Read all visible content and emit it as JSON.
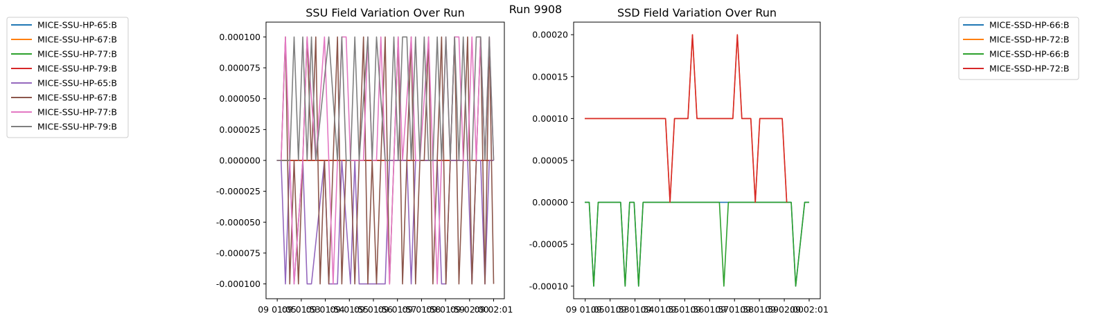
{
  "suptitle": "Run 9908",
  "chart_data": [
    {
      "type": "line",
      "title": "SSU Field Variation Over Run",
      "xlabel": "",
      "ylabel": "",
      "x_ticks": [
        "09 01:05",
        "09 01:53",
        "09 01:54",
        "09 01:55",
        "09 01:56",
        "09 01:57",
        "09 01:58",
        "09 01:59",
        "09 02:00",
        "09 02:01"
      ],
      "y_ticks": [
        "-0.000100",
        "-0.000075",
        "-0.000050",
        "-0.000025",
        "0.000000",
        "0.000025",
        "0.000050",
        "0.000075",
        "0.000100"
      ],
      "ylim": [
        -0.000112,
        0.000112
      ],
      "x_range": [
        0,
        100
      ],
      "legend_position": "outside-left",
      "series": [
        {
          "name": "MICE-SSU-HP-65:B",
          "color": "#1f77b4",
          "x": [
            0,
            100
          ],
          "y": [
            0,
            0
          ]
        },
        {
          "name": "MICE-SSU-HP-67:B",
          "color": "#ff7f0e",
          "x": [
            0,
            100
          ],
          "y": [
            0,
            0
          ]
        },
        {
          "name": "MICE-SSU-HP-77:B",
          "color": "#2ca02c",
          "x": [
            0,
            100
          ],
          "y": [
            0,
            0
          ]
        },
        {
          "name": "MICE-SSU-HP-79:B",
          "color": "#d62728",
          "x": [
            0,
            100
          ],
          "y": [
            0,
            0
          ]
        },
        {
          "name": "MICE-SSU-HP-65:B",
          "color": "#9467bd",
          "x": [
            0,
            2,
            4,
            6,
            8,
            12,
            14,
            16,
            22,
            24,
            26,
            28,
            30,
            34,
            36,
            38,
            40,
            42,
            44,
            46,
            48,
            50,
            52,
            54,
            58,
            60,
            62,
            64,
            68,
            70,
            74,
            76,
            78,
            80,
            82,
            84,
            88,
            90,
            92,
            94,
            96,
            98,
            100
          ],
          "y": [
            0,
            0,
            -0.0001,
            0,
            -0.0001,
            0,
            -0.0001,
            -0.0001,
            0,
            -0.0001,
            -0.0001,
            -0.0001,
            0,
            -0.0001,
            0,
            -0.0001,
            -0.0001,
            -0.0001,
            -0.0001,
            -0.0001,
            -0.0001,
            -0.0001,
            0,
            0,
            0,
            0,
            -0.0001,
            0,
            0,
            0,
            0,
            -0.0001,
            -0.0001,
            0,
            0,
            0,
            0,
            -0.0001,
            0,
            0,
            -0.0001,
            0,
            0
          ]
        },
        {
          "name": "MICE-SSU-HP-67:B",
          "color": "#8c564b",
          "x": [
            0,
            2,
            4,
            6,
            8,
            10,
            12,
            14,
            16,
            18,
            20,
            22,
            24,
            26,
            28,
            30,
            32,
            34,
            36,
            38,
            40,
            42,
            44,
            46,
            48,
            50,
            52,
            54,
            56,
            58,
            60,
            62,
            64,
            66,
            68,
            70,
            72,
            74,
            76,
            78,
            80,
            82,
            84,
            86,
            88,
            90,
            92,
            94,
            96,
            98,
            100
          ],
          "y": [
            0,
            0,
            0.0001,
            -0.0001,
            0,
            -0.0001,
            0,
            0.0001,
            0,
            0.0001,
            -0.0001,
            0,
            -0.0001,
            0,
            0.0001,
            -0.0001,
            0,
            0,
            -0.0001,
            0,
            0.0001,
            -0.0001,
            0,
            -0.0001,
            0,
            0.0001,
            -0.0001,
            0,
            0.0001,
            -0.0001,
            0,
            0.0001,
            -0.0001,
            0,
            0,
            0.0001,
            -0.0001,
            0,
            0.0001,
            -0.0001,
            0,
            0.0001,
            -0.0001,
            0,
            0.0001,
            -0.0001,
            0,
            0.0001,
            -0.0001,
            0.0001,
            -0.0001
          ]
        },
        {
          "name": "MICE-SSU-HP-77:B",
          "color": "#e377c2",
          "x": [
            0,
            2,
            4,
            6,
            8,
            12,
            14,
            18,
            22,
            24,
            26,
            28,
            30,
            32,
            34,
            36,
            38,
            40,
            42,
            44,
            46,
            48,
            50,
            52,
            54,
            56,
            58,
            62,
            64,
            66,
            70,
            72,
            74,
            76,
            78,
            80,
            82,
            84,
            86,
            88,
            90,
            92,
            94,
            96,
            98,
            100
          ],
          "y": [
            0,
            0,
            0.0001,
            0,
            -0.0001,
            0,
            0.0001,
            0,
            0.0001,
            0,
            -0.0001,
            0,
            0.0001,
            0.0001,
            0,
            0,
            0,
            0,
            0.0001,
            0,
            0,
            0.0001,
            0,
            -0.0001,
            0,
            0.0001,
            0,
            0.0001,
            0,
            0,
            0.0001,
            0,
            -0.0001,
            0,
            0.0001,
            0,
            0.0001,
            0.0001,
            0,
            0,
            0.0001,
            0,
            0.0001,
            0,
            0.0001,
            0
          ]
        },
        {
          "name": "MICE-SSU-HP-79:B",
          "color": "#7f7f7f",
          "x": [
            0,
            6,
            8,
            10,
            12,
            14,
            16,
            18,
            24,
            28,
            30,
            32,
            34,
            36,
            38,
            42,
            44,
            46,
            50,
            52,
            54,
            56,
            58,
            60,
            62,
            64,
            66,
            68,
            70,
            72,
            74,
            76,
            78,
            80,
            82,
            84,
            86,
            88,
            90,
            92,
            94,
            96,
            98,
            100
          ],
          "y": [
            0,
            0,
            0.0001,
            0,
            0.0001,
            0,
            0.0001,
            0,
            0.0001,
            0,
            0.0001,
            0,
            0,
            0.0001,
            0,
            0.0001,
            0,
            0.0001,
            0,
            0,
            0.0001,
            0,
            0.0001,
            0.0001,
            0,
            0.0001,
            0,
            0.0001,
            0,
            0,
            0.0001,
            0,
            0.0001,
            0,
            0.0001,
            0,
            0.0001,
            0,
            0,
            0.0001,
            0.0001,
            0,
            0.0001,
            0
          ]
        }
      ]
    },
    {
      "type": "line",
      "title": "SSD Field Variation Over Run",
      "xlabel": "",
      "ylabel": "",
      "x_ticks": [
        "09 01:05",
        "09 01:53",
        "09 01:54",
        "09 01:55",
        "09 01:56",
        "09 01:57",
        "09 01:58",
        "09 01:59",
        "09 02:00",
        "09 02:01"
      ],
      "y_ticks": [
        "-0.00010",
        "-0.00005",
        "0.00000",
        "0.00005",
        "0.00010",
        "0.00015",
        "0.00020"
      ],
      "ylim": [
        -0.000115,
        0.000215
      ],
      "x_range": [
        0,
        100
      ],
      "legend_position": "outside-right",
      "series": [
        {
          "name": "MICE-SSD-HP-66:B",
          "color": "#1f77b4",
          "x": [
            0,
            2,
            4,
            6,
            16,
            18,
            20,
            22,
            24,
            26,
            36,
            38,
            40,
            42,
            60,
            62,
            64,
            66,
            84,
            86,
            88,
            90,
            92,
            94,
            98,
            100
          ],
          "y": [
            0,
            0,
            -0.0001,
            0,
            0,
            -0.0001,
            0,
            0,
            -0.0001,
            0,
            0,
            0,
            0,
            0,
            0,
            0,
            0,
            0,
            0,
            0,
            0,
            0,
            0,
            -0.0001,
            0,
            0
          ]
        },
        {
          "name": "MICE-SSD-HP-72:B",
          "color": "#ff7f0e",
          "x": [
            0,
            36,
            38,
            40,
            46,
            48,
            50,
            66,
            68,
            70,
            74,
            76,
            78,
            88,
            90
          ],
          "y": [
            0.0001,
            0.0001,
            0,
            0.0001,
            0.0001,
            0.0002,
            0.0001,
            0.0001,
            0.0002,
            0.0001,
            0.0001,
            0,
            0.0001,
            0.0001,
            0
          ]
        },
        {
          "name": "MICE-SSD-HP-66:B",
          "color": "#2ca02c",
          "x": [
            0,
            2,
            4,
            6,
            16,
            18,
            20,
            22,
            24,
            26,
            60,
            62,
            64,
            66,
            84,
            86,
            88,
            90,
            92,
            94,
            98,
            100
          ],
          "y": [
            0,
            0,
            -0.0001,
            0,
            0,
            -0.0001,
            0,
            0,
            -0.0001,
            0,
            0,
            -0.0001,
            0,
            0,
            0,
            0,
            0,
            0,
            0,
            -0.0001,
            0,
            0
          ]
        },
        {
          "name": "MICE-SSD-HP-72:B",
          "color": "#d62728",
          "x": [
            0,
            36,
            38,
            40,
            46,
            48,
            50,
            66,
            68,
            70,
            74,
            76,
            78,
            88,
            90
          ],
          "y": [
            0.0001,
            0.0001,
            0,
            0.0001,
            0.0001,
            0.0002,
            0.0001,
            0.0001,
            0.0002,
            0.0001,
            0.0001,
            0,
            0.0001,
            0.0001,
            0
          ]
        }
      ]
    }
  ]
}
